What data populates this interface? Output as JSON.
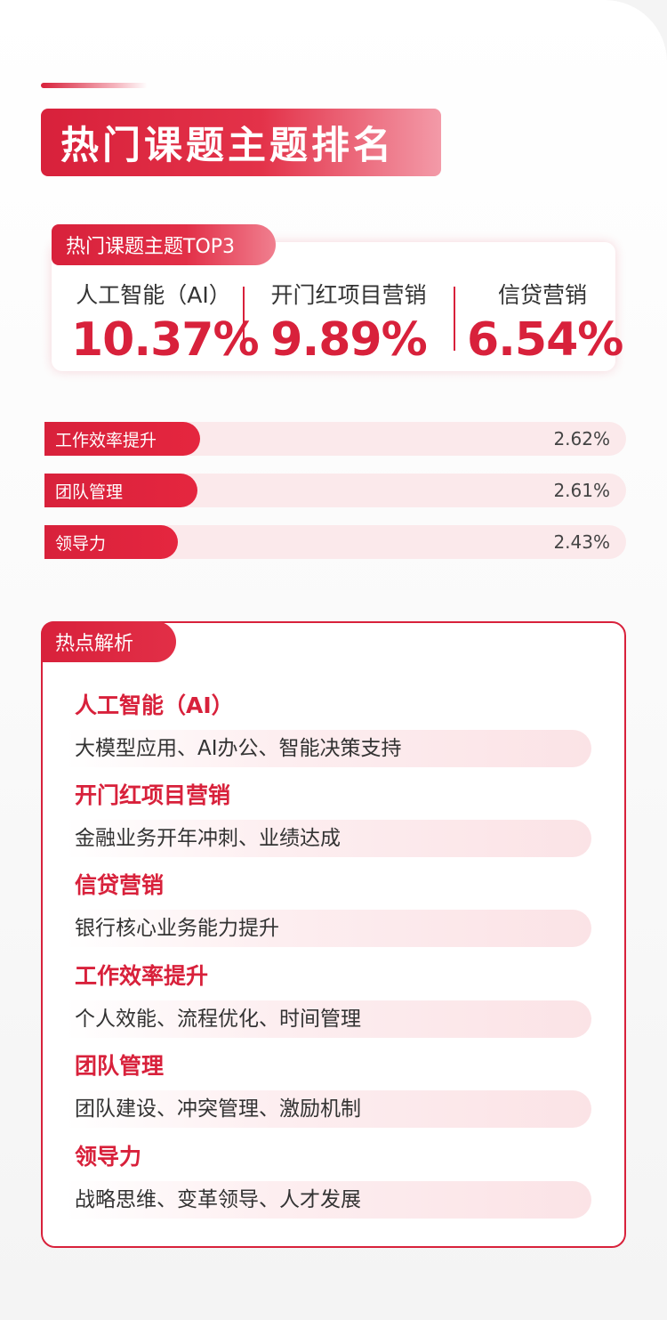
{
  "header": {
    "title": "热门课题主题排名"
  },
  "top3": {
    "tag": "热门课题主题TOP3",
    "items": [
      {
        "label": "人工智能（AI）",
        "value": "10.37%"
      },
      {
        "label": "开门红项目营销",
        "value": "9.89%"
      },
      {
        "label": "信贷营销",
        "value": "6.54%"
      }
    ]
  },
  "ranking": [
    {
      "label": "工作效率提升",
      "value": "2.62%",
      "share": 2.62
    },
    {
      "label": "团队管理",
      "value": "2.61%",
      "share": 2.61
    },
    {
      "label": "领导力",
      "value": "2.43%",
      "share": 2.43
    }
  ],
  "analysis": {
    "tag": "热点解析",
    "topics": [
      {
        "head": "人工智能（AI）",
        "desc": "大模型应用、AI办公、智能决策支持"
      },
      {
        "head": "开门红项目营销",
        "desc": "金融业务开年冲刺、业绩达成"
      },
      {
        "head": "信贷营销",
        "desc": "银行核心业务能力提升"
      },
      {
        "head": "工作效率提升",
        "desc": "个人效能、流程优化、时间管理"
      },
      {
        "head": "团队管理",
        "desc": "团队建设、冲突管理、激励机制"
      },
      {
        "head": "领导力",
        "desc": "战略思维、变革领导、人才发展"
      }
    ]
  },
  "colors": {
    "accent": "#d8213b",
    "bar_track": "#fbe9eb"
  }
}
